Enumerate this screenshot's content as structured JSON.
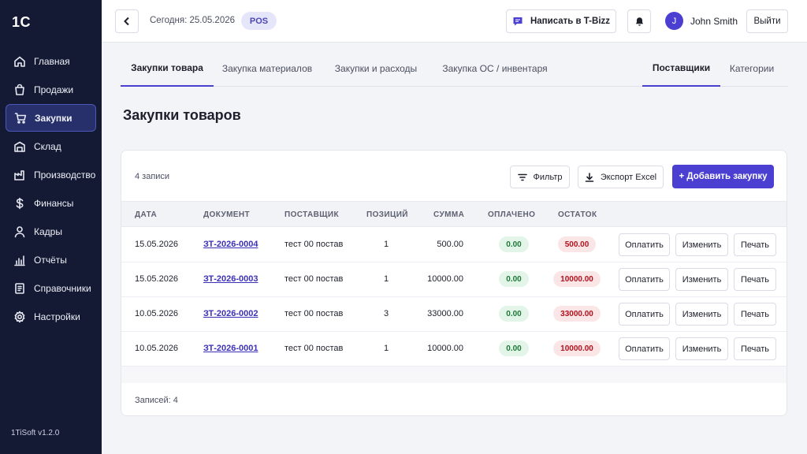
{
  "sidebar": {
    "logo": "1C",
    "items": [
      {
        "label": "Главная",
        "icon": "home-icon"
      },
      {
        "label": "Продажи",
        "icon": "shopping-bag-icon"
      },
      {
        "label": "Закупки",
        "icon": "cart-icon"
      },
      {
        "label": "Склад",
        "icon": "warehouse-icon"
      },
      {
        "label": "Производство",
        "icon": "factory-icon"
      },
      {
        "label": "Финансы",
        "icon": "dollar-icon"
      },
      {
        "label": "Кадры",
        "icon": "user-icon"
      },
      {
        "label": "Отчёты",
        "icon": "bar-chart-icon"
      },
      {
        "label": "Справочники",
        "icon": "book-icon"
      },
      {
        "label": "Настройки",
        "icon": "gear-icon"
      }
    ],
    "active_item": "Закупки",
    "version": "1TiSoft v1.2.0"
  },
  "header": {
    "today": "Сегодня: 25.05.2026",
    "pos_badge": "POS",
    "tbizz_label": "Написать в T-Bizz",
    "avatar_initial": "J",
    "user_name": "John Smith",
    "logout_label": "Выйти"
  },
  "tabs": [
    {
      "label": "Закупки товара",
      "active": true
    },
    {
      "label": "Закупка материалов",
      "active": false
    },
    {
      "label": "Закупки и расходы",
      "active": false
    },
    {
      "label": "Закупка ОС / инвентаря",
      "active": false
    },
    {
      "label": "Поставщики",
      "active": true
    },
    {
      "label": "Категории",
      "active": false
    }
  ],
  "page_title": "Закупки товаров",
  "toolbar": {
    "records_count": "4 записи",
    "filter_label": "Фильтр",
    "export_label": "Экспорт Excel",
    "add_label": "+ Добавить закупку"
  },
  "table": {
    "columns": [
      "ДАТА",
      "ДОКУМЕНТ",
      "ПОСТАВЩИК",
      "ПОЗИЦИЙ",
      "СУММА",
      "ОПЛАЧЕНО",
      "ОСТАТОК"
    ],
    "rows": [
      {
        "date": "15.05.2026",
        "doc": "ЗТ-2026-0004",
        "supplier": "тест 00 постав",
        "positions": "1",
        "sum": "500.00",
        "paid": "0.00",
        "rest": "500.00"
      },
      {
        "date": "15.05.2026",
        "doc": "ЗТ-2026-0003",
        "supplier": "тест 00 постав",
        "positions": "1",
        "sum": "10000.00",
        "paid": "0.00",
        "rest": "10000.00"
      },
      {
        "date": "10.05.2026",
        "doc": "ЗТ-2026-0002",
        "supplier": "тест 00 постав",
        "positions": "3",
        "sum": "33000.00",
        "paid": "0.00",
        "rest": "33000.00"
      },
      {
        "date": "10.05.2026",
        "doc": "ЗТ-2026-0001",
        "supplier": "тест 00 постав",
        "positions": "1",
        "sum": "10000.00",
        "paid": "0.00",
        "rest": "10000.00"
      }
    ],
    "row_actions": {
      "pay": "Оплатить",
      "edit": "Изменить",
      "print": "Печать"
    }
  },
  "footer": {
    "records_label": "Записей: 4"
  },
  "colors": {
    "accent": "#4a3fd0",
    "sidebar_bg": "#141a33",
    "paid_bg": "#e3f5e8",
    "rest_bg": "#fbe6e7"
  }
}
